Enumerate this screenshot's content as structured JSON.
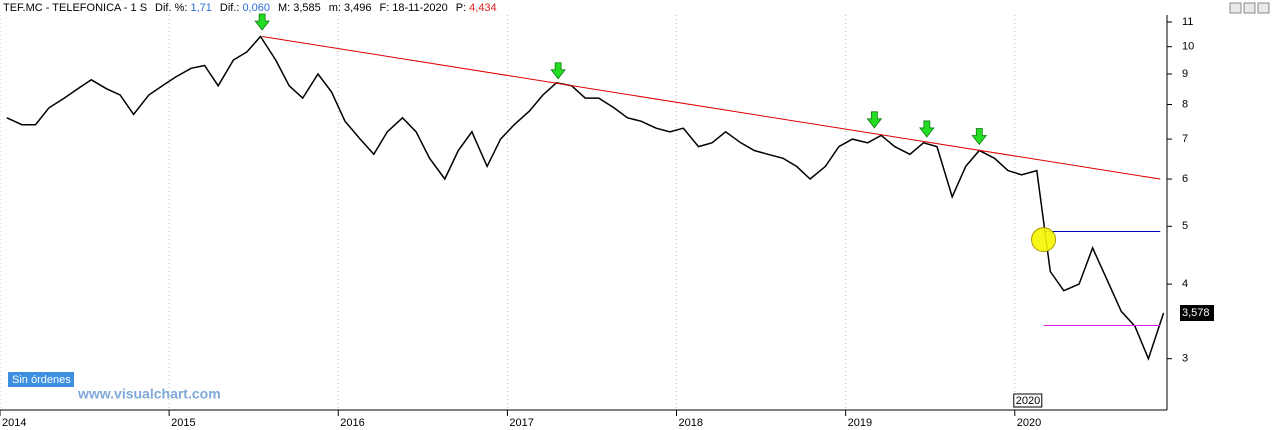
{
  "header": {
    "symbol": "TEF.MC - TELEFONICA - 1 S",
    "items": [
      {
        "label": "Dif. %:",
        "value": "1,71",
        "color": "#2a6fd6"
      },
      {
        "label": "Dif.:",
        "value": "0,060",
        "color": "#2a6fd6"
      },
      {
        "label": "M:",
        "value": "3,585",
        "color": "#000000"
      },
      {
        "label": "m:",
        "value": "3,496",
        "color": "#000000"
      },
      {
        "label": "F:",
        "value": "18-11-2020",
        "color": "#000000"
      },
      {
        "label": "P:",
        "value": "4,434",
        "color": "#e02020"
      }
    ]
  },
  "button": "Sin órdenes",
  "watermark": "www.visualchart.com",
  "chart_data": {
    "type": "line",
    "log_scale": true,
    "grid": "x",
    "color": "#000000",
    "x": [
      2014.04,
      2014.13,
      2014.21,
      2014.29,
      2014.38,
      2014.46,
      2014.54,
      2014.63,
      2014.71,
      2014.79,
      2014.88,
      2014.96,
      2015.04,
      2015.13,
      2015.21,
      2015.29,
      2015.38,
      2015.46,
      2015.54,
      2015.63,
      2015.71,
      2015.79,
      2015.88,
      2015.96,
      2016.04,
      2016.13,
      2016.21,
      2016.29,
      2016.38,
      2016.46,
      2016.54,
      2016.63,
      2016.71,
      2016.79,
      2016.88,
      2016.96,
      2017.04,
      2017.13,
      2017.21,
      2017.29,
      2017.38,
      2017.46,
      2017.54,
      2017.63,
      2017.71,
      2017.79,
      2017.88,
      2017.96,
      2018.04,
      2018.13,
      2018.21,
      2018.29,
      2018.38,
      2018.46,
      2018.54,
      2018.63,
      2018.71,
      2018.79,
      2018.88,
      2018.96,
      2019.04,
      2019.13,
      2019.21,
      2019.29,
      2019.38,
      2019.46,
      2019.54,
      2019.63,
      2019.71,
      2019.79,
      2019.88,
      2019.96,
      2020.04,
      2020.13,
      2020.21,
      2020.29,
      2020.38,
      2020.46,
      2020.54,
      2020.63,
      2020.71,
      2020.79,
      2020.88
    ],
    "values": [
      7.6,
      7.4,
      7.4,
      7.9,
      8.2,
      8.5,
      8.8,
      8.5,
      8.3,
      7.7,
      8.3,
      8.6,
      8.9,
      9.2,
      9.3,
      8.6,
      9.5,
      9.8,
      10.4,
      9.5,
      8.6,
      8.2,
      9.0,
      8.4,
      7.5,
      7.0,
      6.6,
      7.2,
      7.6,
      7.2,
      6.5,
      6.0,
      6.7,
      7.2,
      6.3,
      7.0,
      7.4,
      7.8,
      8.3,
      8.7,
      8.6,
      8.2,
      8.2,
      7.9,
      7.6,
      7.5,
      7.3,
      7.2,
      7.3,
      6.8,
      6.9,
      7.2,
      6.9,
      6.7,
      6.6,
      6.5,
      6.3,
      6.0,
      6.3,
      6.8,
      7.0,
      6.9,
      7.1,
      6.8,
      6.6,
      6.9,
      6.8,
      5.6,
      6.3,
      6.7,
      6.5,
      6.2,
      6.1,
      6.2,
      4.2,
      3.9,
      4.0,
      4.6,
      4.1,
      3.6,
      3.4,
      3.0,
      3.58
    ],
    "xlim": [
      2014,
      2020.9
    ],
    "xticks": [
      2014,
      2015,
      2016,
      2017,
      2018,
      2019,
      2020
    ],
    "ylim": [
      2.48,
      11.3
    ],
    "yticks": [
      3,
      4,
      5,
      6,
      7,
      8,
      9,
      10,
      11
    ],
    "last_price": {
      "value": 3.578,
      "label": "3,578"
    },
    "cursor": {
      "value": 2020,
      "label": "2020"
    },
    "lines": [
      {
        "x": [
          2015.55,
          2020.86
        ],
        "y": [
          10.4,
          6.0
        ],
        "color": "#e00000"
      },
      {
        "x": [
          2020.17,
          2020.86
        ],
        "y": [
          4.9,
          4.9
        ],
        "color": "#0000c0"
      },
      {
        "x": [
          2020.17,
          2020.86
        ],
        "y": [
          3.41,
          3.41
        ],
        "color": "#e020e0"
      }
    ],
    "arrows": {
      "x": [
        2015.55,
        2017.3,
        2019.17,
        2019.48,
        2019.79
      ],
      "y": [
        10.5,
        8.7,
        7.2,
        6.95,
        6.75
      ],
      "color": "#22dd22"
    },
    "circle": {
      "x": 2020.17,
      "y": 4.75,
      "color": "#f5f500"
    }
  }
}
